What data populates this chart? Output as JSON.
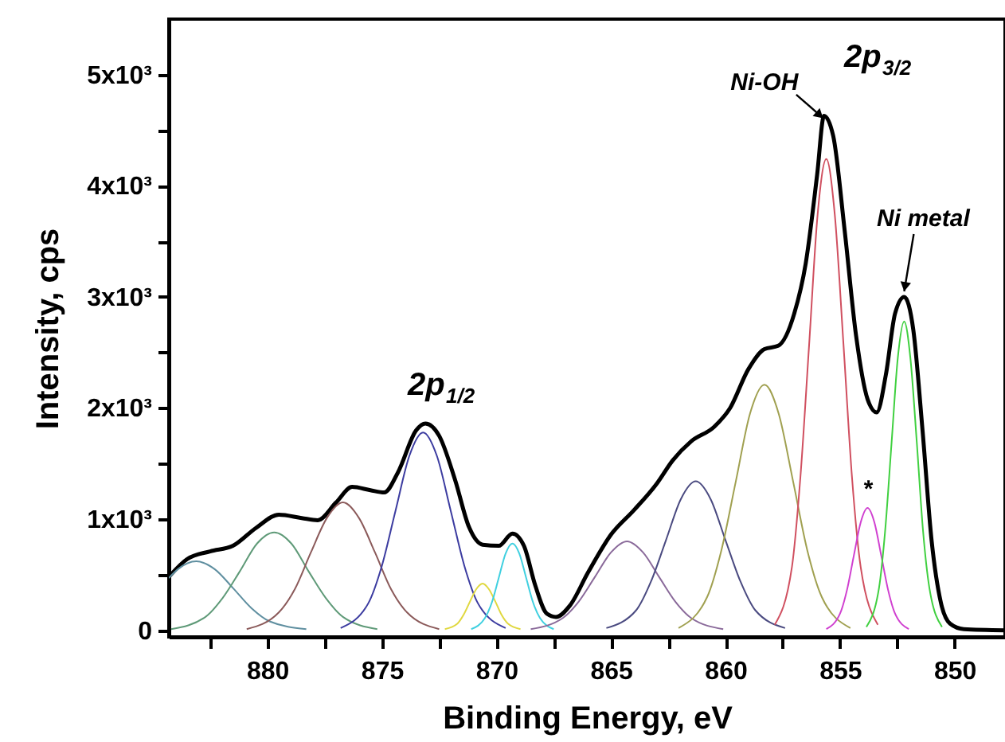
{
  "chart_data": {
    "type": "line",
    "xlabel": "Binding Energy, eV",
    "ylabel": "Intensity, cps",
    "xlim": [
      884.3,
      847.8
    ],
    "ylim": [
      -60,
      5500
    ],
    "xticks": [
      {
        "value": 882.5,
        "label": null
      },
      880,
      {
        "value": 877.5,
        "label": null
      },
      875,
      {
        "value": 872.5,
        "label": null
      },
      870,
      {
        "value": 867.5,
        "label": null
      },
      865,
      {
        "value": 862.5,
        "label": null
      },
      860,
      {
        "value": 857.5,
        "label": null
      },
      855,
      {
        "value": 852.5,
        "label": null
      },
      850
    ],
    "yticks": [
      0,
      {
        "value": 500,
        "label": null
      },
      {
        "value": 1000,
        "label": "1x10³"
      },
      {
        "value": 1500,
        "label": null
      },
      {
        "value": 2000,
        "label": "2x10³"
      },
      {
        "value": 2500,
        "label": null
      },
      {
        "value": 3000,
        "label": "3x10³"
      },
      {
        "value": 3500,
        "label": null
      },
      {
        "value": 4000,
        "label": "4x10³"
      },
      {
        "value": 4500,
        "label": null
      },
      {
        "value": 5000,
        "label": "5x10³"
      }
    ],
    "grid": false,
    "marker": "none",
    "line_style": "solid",
    "series": [
      {
        "color": "#000000",
        "x": [
          884.3,
          883.5,
          882.5,
          881.5,
          880.5,
          879.5,
          878.5,
          877.8,
          877,
          876.3,
          875.5,
          874.9,
          874.3,
          873.5,
          873.1,
          872.5,
          871.8,
          871.2,
          870.6,
          869.9,
          869.3,
          868.8,
          868.3,
          867.8,
          867.4,
          866.8,
          866,
          865,
          864,
          863,
          862.3,
          861.5,
          860.5,
          859.8,
          859,
          858.3,
          857.7,
          857,
          856.5,
          856,
          855.7,
          855.3,
          854.8,
          854.3,
          853.8,
          853.4,
          853,
          852.6,
          852.2,
          851.8,
          851.4,
          851,
          850.6,
          850.2,
          849.6,
          847.8
        ],
        "values": [
          480,
          640,
          710,
          760,
          920,
          1040,
          1010,
          990,
          1150,
          1290,
          1260,
          1240,
          1420,
          1800,
          1860,
          1750,
          1350,
          930,
          770,
          760,
          870,
          760,
          400,
          150,
          120,
          220,
          520,
          860,
          1080,
          1320,
          1530,
          1700,
          1830,
          2000,
          2350,
          2530,
          2560,
          2850,
          3300,
          4100,
          4630,
          4450,
          3600,
          2650,
          2080,
          1960,
          2300,
          2850,
          3000,
          2700,
          1800,
          800,
          250,
          60,
          10,
          0
        ]
      },
      {
        "color": "#5f8fa0",
        "x": [
          878.3,
          879.9,
          880.7,
          881.5,
          882.3,
          883.1,
          883.9,
          884.3
        ],
        "values": [
          10,
          80,
          200,
          380,
          550,
          620,
          550,
          470
        ]
      },
      {
        "color": "#5f9a78",
        "x": [
          875.2,
          876.7,
          877.45,
          878.2,
          878.95,
          879.7,
          880.45,
          881.2,
          881.95,
          882.7,
          884.2
        ],
        "values": [
          10,
          120,
          290,
          530,
          780,
          880,
          780,
          530,
          290,
          120,
          10
        ]
      },
      {
        "color": "#8b5a5a",
        "x": [
          872.5,
          873.9,
          874.6,
          875.3,
          876.0,
          876.7,
          877.4,
          878.1,
          878.8,
          879.5,
          880.9
        ],
        "values": [
          10,
          160,
          370,
          700,
          1010,
          1150,
          1010,
          700,
          370,
          160,
          10
        ]
      },
      {
        "color": "#3c3ca0",
        "x": [
          869.6,
          870.8,
          871.4,
          872.0,
          872.6,
          873.2,
          873.8,
          874.4,
          875.0,
          875.6,
          876.8
        ],
        "values": [
          20,
          240,
          580,
          1080,
          1570,
          1780,
          1570,
          1080,
          580,
          240,
          20
        ]
      },
      {
        "color": "#e0d840",
        "x": [
          868.95,
          869.5,
          869.78,
          870.05,
          870.33,
          870.6,
          870.88,
          871.15,
          871.43,
          871.7,
          872.25
        ],
        "values": [
          10,
          60,
          140,
          260,
          370,
          420,
          370,
          260,
          140,
          60,
          10
        ]
      },
      {
        "color": "#40d0e0",
        "x": [
          867.5,
          868.1,
          868.4,
          868.7,
          869.0,
          869.3,
          869.6,
          869.9,
          870.2,
          870.5,
          871.1
        ],
        "values": [
          10,
          110,
          250,
          470,
          690,
          780,
          690,
          470,
          250,
          110,
          10
        ]
      },
      {
        "color": "#8a6a9a",
        "x": [
          860.1,
          861.5,
          862.2,
          862.9,
          863.6,
          864.3,
          865.0,
          865.7,
          866.4,
          867.1,
          868.5
        ],
        "values": [
          10,
          110,
          260,
          480,
          700,
          800,
          700,
          480,
          260,
          110,
          10
        ]
      },
      {
        "color": "#4a4a80",
        "x": [
          857.4,
          858.7,
          859.35,
          860.0,
          860.65,
          861.3,
          861.95,
          862.6,
          863.25,
          863.9,
          865.2
        ],
        "values": [
          20,
          180,
          440,
          810,
          1180,
          1340,
          1180,
          810,
          440,
          180,
          20
        ]
      },
      {
        "color": "#a0a050",
        "x": [
          854.55,
          855.8,
          856.43,
          857.05,
          857.68,
          858.3,
          858.93,
          859.55,
          860.18,
          860.8,
          862.05
        ],
        "values": [
          20,
          300,
          720,
          1340,
          1950,
          2210,
          1950,
          1340,
          720,
          300,
          20
        ]
      },
      {
        "color": "#d05060",
        "x": [
          853.35,
          854.1,
          854.48,
          854.85,
          855.23,
          855.6,
          855.98,
          856.35,
          856.73,
          857.1,
          857.85
        ],
        "values": [
          50,
          570,
          1380,
          2570,
          3740,
          4240,
          3740,
          2570,
          1380,
          570,
          50
        ]
      },
      {
        "color": "#d040d0",
        "x": [
          852.0,
          852.6,
          852.9,
          853.2,
          853.5,
          853.8,
          854.1,
          854.4,
          854.7,
          855.0,
          855.6
        ],
        "values": [
          10,
          150,
          360,
          670,
          970,
          1100,
          970,
          670,
          360,
          150,
          10
        ]
      },
      {
        "color": "#40d040",
        "x": [
          850.55,
          851.1,
          851.38,
          851.65,
          851.93,
          852.2,
          852.48,
          852.75,
          853.03,
          853.3,
          853.85
        ],
        "values": [
          30,
          380,
          900,
          1690,
          2450,
          2780,
          2450,
          1690,
          900,
          380,
          30
        ]
      }
    ],
    "annotations": [
      "2p$_{3/2}$",
      "2p$_{1/2}$",
      {
        "text": "Ni-OH",
        "x": 855.8,
        "y": 4620
      },
      {
        "text": "Ni metal",
        "x": 852.2,
        "y": 3050
      },
      {
        "text": "*",
        "x": 853.8,
        "y": 1100
      }
    ]
  }
}
